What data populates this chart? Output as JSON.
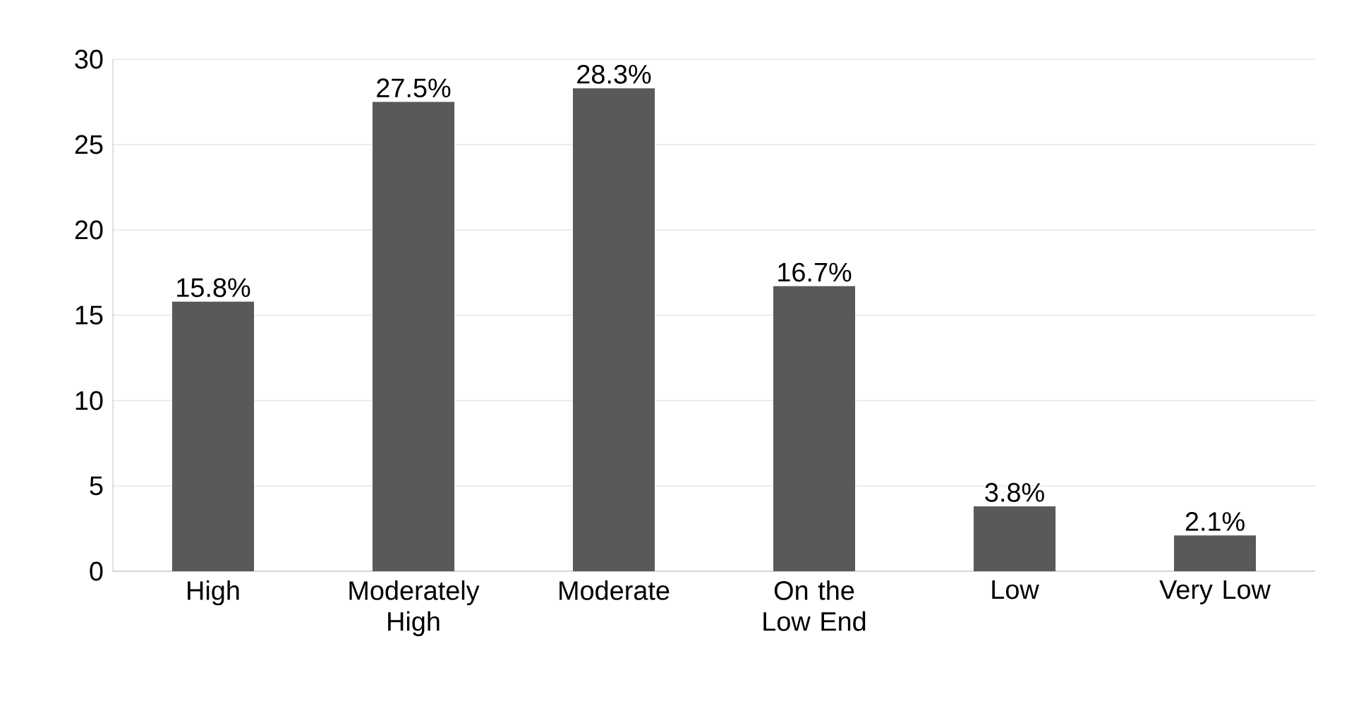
{
  "chart_data": {
    "type": "bar",
    "categories": [
      "High",
      "Moderately High",
      "Moderate",
      "On the Low End",
      "Low",
      "Very Low"
    ],
    "values": [
      15.8,
      27.5,
      28.3,
      16.7,
      3.8,
      2.1
    ],
    "value_labels": [
      "15.8%",
      "27.5%",
      "28.3%",
      "16.7%",
      "3.8%",
      "2.1%"
    ],
    "color": "#595959",
    "ylim": [
      0,
      30
    ],
    "yticks": [
      0,
      5,
      10,
      15,
      20,
      25,
      30
    ],
    "grid": "y"
  }
}
